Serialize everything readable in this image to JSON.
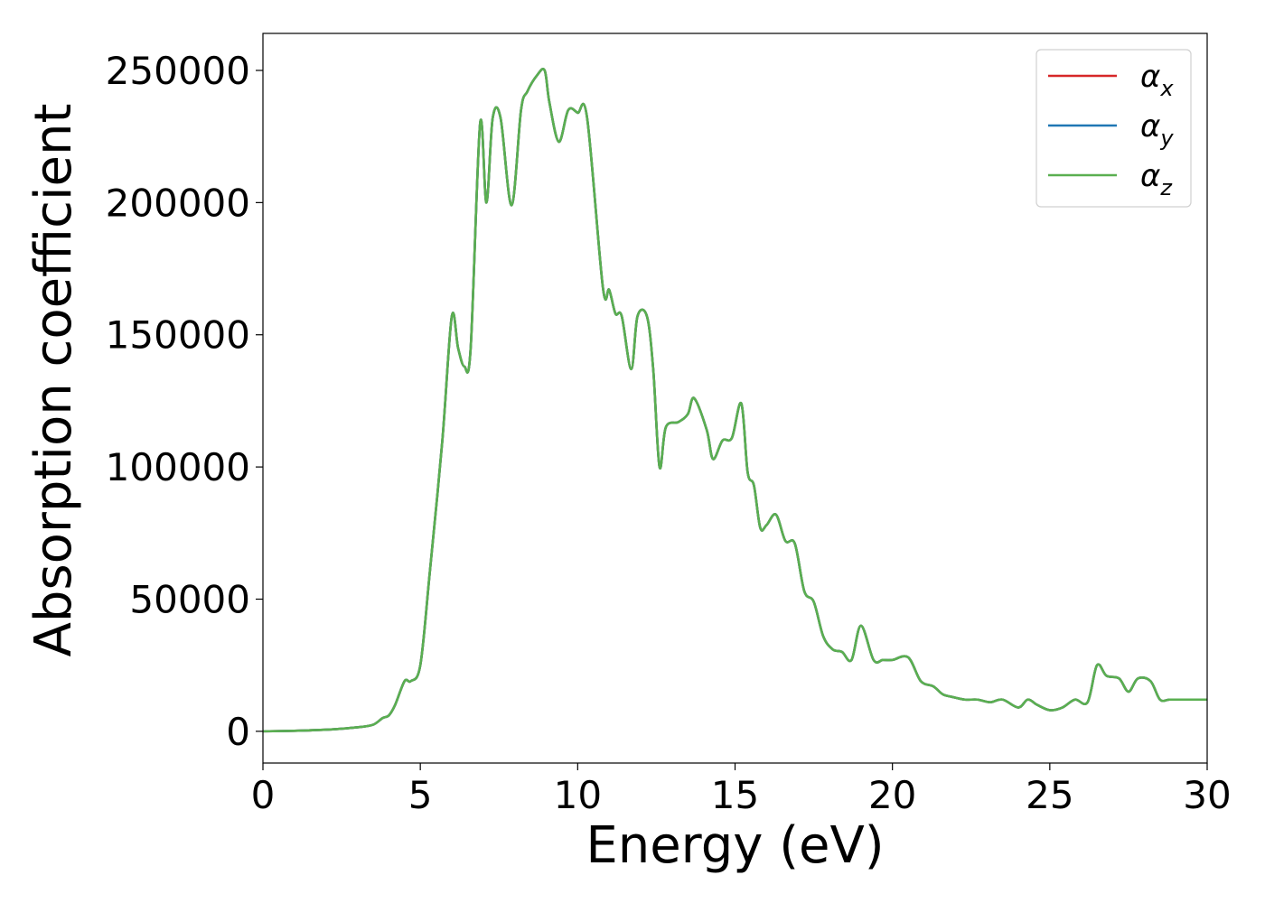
{
  "chart_data": {
    "type": "line",
    "xlabel": "Energy (eV)",
    "ylabel": "Absorption coefficient",
    "xlim": [
      0,
      30
    ],
    "ylim": [
      -12000,
      264000
    ],
    "xticks": [
      0,
      5,
      10,
      15,
      20,
      25,
      30
    ],
    "yticks": [
      0,
      50000,
      100000,
      150000,
      200000,
      250000
    ],
    "grid": false,
    "legend_position": "top-right",
    "series": [
      {
        "name": "α_x",
        "legend_symbol": "α",
        "legend_sub": "x",
        "color": "#d62728",
        "x": [
          0,
          1,
          2,
          3,
          3.5,
          3.8,
          4.0,
          4.2,
          4.5,
          4.7,
          5.0,
          5.3,
          5.7,
          6.0,
          6.2,
          6.4,
          6.6,
          6.9,
          7.1,
          7.3,
          7.55,
          7.9,
          8.2,
          8.4,
          8.7,
          8.95,
          9.1,
          9.4,
          9.7,
          10.0,
          10.3,
          10.8,
          11.0,
          11.2,
          11.4,
          11.7,
          11.9,
          12.2,
          12.4,
          12.6,
          12.8,
          13.2,
          13.5,
          13.7,
          14.1,
          14.3,
          14.6,
          14.9,
          15.2,
          15.4,
          15.6,
          15.8,
          16.0,
          16.3,
          16.6,
          16.9,
          17.2,
          17.5,
          17.8,
          18.1,
          18.4,
          18.7,
          19.0,
          19.4,
          19.7,
          20.0,
          20.5,
          20.9,
          21.3,
          21.6,
          21.9,
          22.3,
          22.7,
          23.1,
          23.5,
          24.0,
          24.3,
          24.6,
          25.0,
          25.4,
          25.8,
          26.2,
          26.5,
          26.8,
          27.2,
          27.5,
          27.8,
          28.2,
          28.5,
          28.8,
          29.2,
          29.5,
          29.8,
          30.0
        ],
        "y": [
          0,
          200,
          600,
          1500,
          2500,
          5000,
          6000,
          10000,
          19000,
          19000,
          25000,
          60000,
          110000,
          157000,
          145000,
          138000,
          145000,
          230000,
          200000,
          232000,
          232000,
          199000,
          235000,
          242000,
          248000,
          250000,
          238000,
          223000,
          235000,
          234000,
          232000,
          168000,
          167000,
          158000,
          157000,
          137000,
          157000,
          157000,
          137000,
          100000,
          115000,
          117000,
          120000,
          126000,
          114000,
          103000,
          110000,
          111000,
          124000,
          98000,
          93000,
          77000,
          78000,
          82000,
          72000,
          71000,
          53000,
          49000,
          36000,
          31000,
          30000,
          27000,
          40000,
          27000,
          27000,
          27000,
          28000,
          19000,
          17000,
          14000,
          13000,
          12000,
          12000,
          11000,
          12000,
          9000,
          12000,
          10000,
          8000,
          9000,
          12000,
          11000,
          25000,
          21000,
          20000,
          15000,
          20000,
          19000,
          12000,
          12000,
          12000,
          12000,
          12000,
          12000
        ]
      },
      {
        "name": "α_y",
        "legend_symbol": "α",
        "legend_sub": "y",
        "color": "#1f77b4",
        "x": [
          0,
          1,
          2,
          3,
          3.5,
          3.8,
          4.0,
          4.2,
          4.5,
          4.7,
          5.0,
          5.3,
          5.7,
          6.0,
          6.2,
          6.4,
          6.6,
          6.9,
          7.1,
          7.3,
          7.55,
          7.9,
          8.2,
          8.4,
          8.7,
          8.95,
          9.1,
          9.4,
          9.7,
          10.0,
          10.3,
          10.8,
          11.0,
          11.2,
          11.4,
          11.7,
          11.9,
          12.2,
          12.4,
          12.6,
          12.8,
          13.2,
          13.5,
          13.7,
          14.1,
          14.3,
          14.6,
          14.9,
          15.2,
          15.4,
          15.6,
          15.8,
          16.0,
          16.3,
          16.6,
          16.9,
          17.2,
          17.5,
          17.8,
          18.1,
          18.4,
          18.7,
          19.0,
          19.4,
          19.7,
          20.0,
          20.5,
          20.9,
          21.3,
          21.6,
          21.9,
          22.3,
          22.7,
          23.1,
          23.5,
          24.0,
          24.3,
          24.6,
          25.0,
          25.4,
          25.8,
          26.2,
          26.5,
          26.8,
          27.2,
          27.5,
          27.8,
          28.2,
          28.5,
          28.8,
          29.2,
          29.5,
          29.8,
          30.0
        ],
        "y": [
          0,
          200,
          600,
          1500,
          2500,
          5000,
          6000,
          10000,
          19000,
          19000,
          25000,
          60000,
          110000,
          157000,
          145000,
          138000,
          145000,
          230000,
          200000,
          232000,
          232000,
          199000,
          235000,
          242000,
          248000,
          250000,
          238000,
          223000,
          235000,
          234000,
          232000,
          168000,
          167000,
          158000,
          157000,
          137000,
          157000,
          157000,
          137000,
          100000,
          115000,
          117000,
          120000,
          126000,
          114000,
          103000,
          110000,
          111000,
          124000,
          98000,
          93000,
          77000,
          78000,
          82000,
          72000,
          71000,
          53000,
          49000,
          36000,
          31000,
          30000,
          27000,
          40000,
          27000,
          27000,
          27000,
          28000,
          19000,
          17000,
          14000,
          13000,
          12000,
          12000,
          11000,
          12000,
          9000,
          12000,
          10000,
          8000,
          9000,
          12000,
          11000,
          25000,
          21000,
          20000,
          15000,
          20000,
          19000,
          12000,
          12000,
          12000,
          12000,
          12000,
          12000
        ]
      },
      {
        "name": "α_z",
        "legend_symbol": "α",
        "legend_sub": "z",
        "color": "#5aaf50",
        "x": [
          0,
          1,
          2,
          3,
          3.5,
          3.8,
          4.0,
          4.2,
          4.5,
          4.7,
          5.0,
          5.3,
          5.7,
          6.0,
          6.2,
          6.4,
          6.6,
          6.9,
          7.1,
          7.3,
          7.55,
          7.9,
          8.2,
          8.4,
          8.7,
          8.95,
          9.1,
          9.4,
          9.7,
          10.0,
          10.3,
          10.8,
          11.0,
          11.2,
          11.4,
          11.7,
          11.9,
          12.2,
          12.4,
          12.6,
          12.8,
          13.2,
          13.5,
          13.7,
          14.1,
          14.3,
          14.6,
          14.9,
          15.2,
          15.4,
          15.6,
          15.8,
          16.0,
          16.3,
          16.6,
          16.9,
          17.2,
          17.5,
          17.8,
          18.1,
          18.4,
          18.7,
          19.0,
          19.4,
          19.7,
          20.0,
          20.5,
          20.9,
          21.3,
          21.6,
          21.9,
          22.3,
          22.7,
          23.1,
          23.5,
          24.0,
          24.3,
          24.6,
          25.0,
          25.4,
          25.8,
          26.2,
          26.5,
          26.8,
          27.2,
          27.5,
          27.8,
          28.2,
          28.5,
          28.8,
          29.2,
          29.5,
          29.8,
          30.0
        ],
        "y": [
          0,
          200,
          600,
          1500,
          2500,
          5000,
          6000,
          10000,
          19000,
          19000,
          25000,
          60000,
          110000,
          157000,
          145000,
          138000,
          145000,
          230000,
          200000,
          232000,
          232000,
          199000,
          235000,
          242000,
          248000,
          250000,
          238000,
          223000,
          235000,
          234000,
          232000,
          168000,
          167000,
          158000,
          157000,
          137000,
          157000,
          157000,
          137000,
          100000,
          115000,
          117000,
          120000,
          126000,
          114000,
          103000,
          110000,
          111000,
          124000,
          98000,
          93000,
          77000,
          78000,
          82000,
          72000,
          71000,
          53000,
          49000,
          36000,
          31000,
          30000,
          27000,
          40000,
          27000,
          27000,
          27000,
          28000,
          19000,
          17000,
          14000,
          13000,
          12000,
          12000,
          11000,
          12000,
          9000,
          12000,
          10000,
          8000,
          9000,
          12000,
          11000,
          25000,
          21000,
          20000,
          15000,
          20000,
          19000,
          12000,
          12000,
          12000,
          12000,
          12000,
          12000
        ]
      }
    ]
  }
}
